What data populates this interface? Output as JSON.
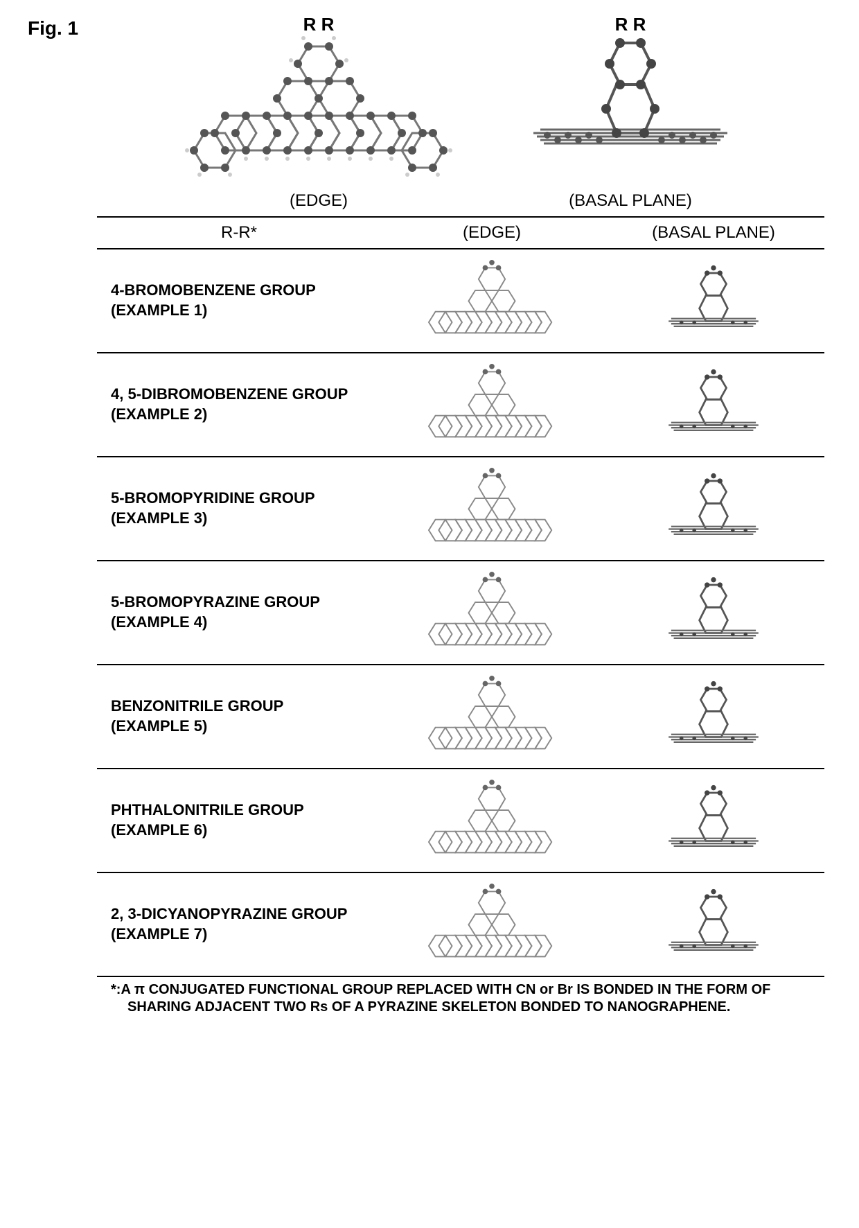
{
  "figure_label": "Fig. 1",
  "top": {
    "r_labels": "R   R",
    "r_labels_right": "R     R",
    "edge_caption": "(EDGE)",
    "basal_caption": "(BASAL PLANE)"
  },
  "table": {
    "header": {
      "col1": "R-R*",
      "col2": "(EDGE)",
      "col3": "(BASAL PLANE)"
    },
    "rows": [
      {
        "name": "4-BROMOBENZENE GROUP",
        "example": "(EXAMPLE 1)"
      },
      {
        "name": "4, 5-DIBROMOBENZENE GROUP",
        "example": "(EXAMPLE 2)"
      },
      {
        "name": "5-BROMOPYRIDINE GROUP",
        "example": "(EXAMPLE 3)"
      },
      {
        "name": "5-BROMOPYRAZINE GROUP",
        "example": "(EXAMPLE 4)"
      },
      {
        "name": "BENZONITRILE GROUP",
        "example": "(EXAMPLE 5)"
      },
      {
        "name": "PHTHALONITRILE GROUP",
        "example": "(EXAMPLE 6)"
      },
      {
        "name": "2, 3-DICYANOPYRAZINE GROUP",
        "example": "(EXAMPLE 7)"
      }
    ]
  },
  "footnote": "*:A π CONJUGATED FUNCTIONAL GROUP REPLACED WITH CN or Br IS BONDED IN THE FORM OF SHARING ADJACENT TWO Rs OF A PYRAZINE SKELETON BONDED TO NANOGRAPHENE.",
  "molecule_style": {
    "atom_color_dark": "#555555",
    "atom_color_light": "#bbbbbb",
    "bond_color": "#777777",
    "atom_radius_large": 6,
    "atom_radius_small": 3,
    "bond_width": 3
  }
}
